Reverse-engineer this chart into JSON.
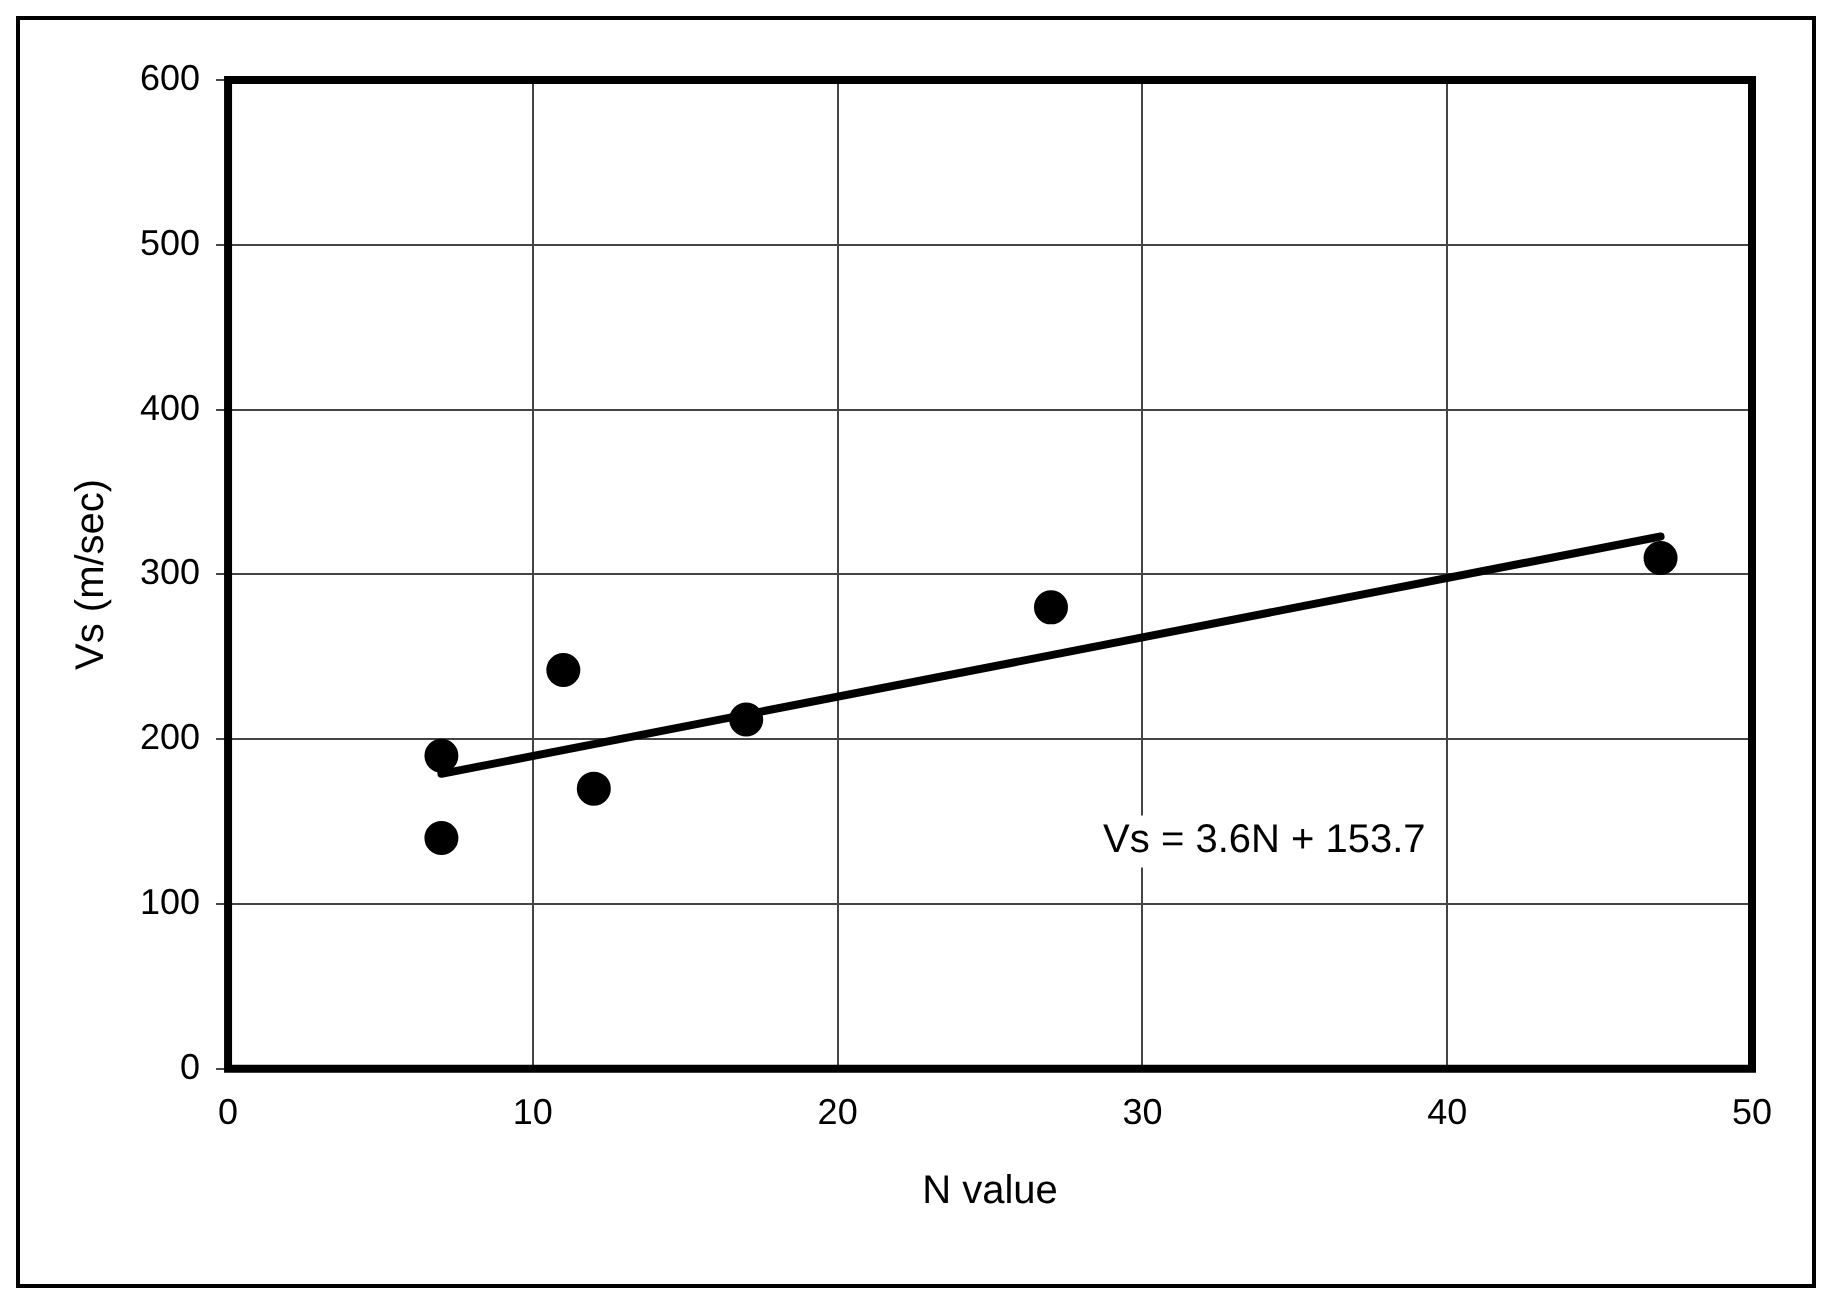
{
  "chart_data": {
    "type": "scatter",
    "xlabel": "N value",
    "ylabel": "Vs (m/sec)",
    "series": [
      {
        "type": "scatter",
        "color": "#000000",
        "marker": "circle",
        "x": [
          7,
          7,
          11,
          12,
          17,
          27,
          47
        ],
        "values": [
          190,
          140,
          242,
          170,
          212,
          280,
          310
        ]
      },
      {
        "type": "line",
        "color": "#000000",
        "x": [
          7,
          47
        ],
        "values": [
          179,
          323
        ]
      }
    ],
    "annotations": [
      "Vs = 3.6N + 153.7"
    ],
    "xlim": [
      0,
      50
    ],
    "xticks": [
      0,
      10,
      20,
      30,
      40,
      50
    ],
    "ylim": [
      0,
      600
    ],
    "yticks": [
      0,
      100,
      200,
      300,
      400,
      500,
      600
    ],
    "grid": true,
    "legend": false
  }
}
